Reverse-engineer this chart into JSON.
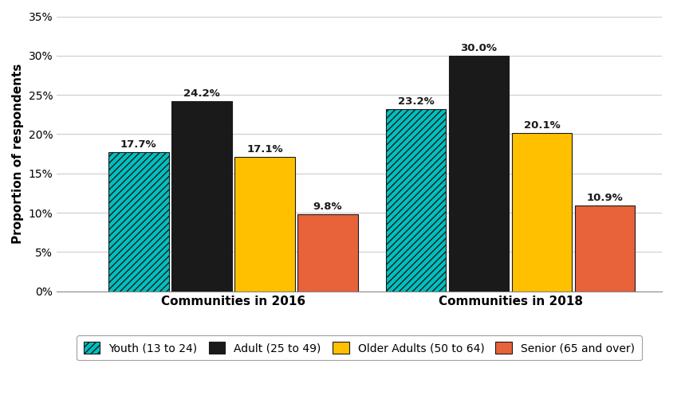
{
  "groups": [
    "Communities in 2016",
    "Communities in 2018"
  ],
  "categories": [
    "Youth (13 to 24)",
    "Adult (25 to 49)",
    "Older Adults (50 to 64)",
    "Senior (65 and over)"
  ],
  "values": {
    "Communities in 2016": [
      17.7,
      24.2,
      17.1,
      9.8
    ],
    "Communities in 2018": [
      23.2,
      30.0,
      20.1,
      10.9
    ]
  },
  "bar_colors": [
    "#00C0C0",
    "#1a1a1a",
    "#FFC000",
    "#E8623A"
  ],
  "hatch_patterns": [
    "////",
    "",
    "",
    ""
  ],
  "ylabel": "Proportion of respondents",
  "ylim": [
    0,
    35
  ],
  "yticks": [
    0,
    5,
    10,
    15,
    20,
    25,
    30,
    35
  ],
  "ytick_labels": [
    "0%",
    "5%",
    "10%",
    "15%",
    "20%",
    "25%",
    "30%",
    "35%"
  ],
  "bar_width": 0.12,
  "group_centers": [
    0.3,
    0.85
  ],
  "xlim": [
    -0.05,
    1.15
  ],
  "label_fontsize": 9.5,
  "axis_fontsize": 11,
  "tick_fontsize": 10,
  "legend_fontsize": 10,
  "background_color": "#ffffff",
  "grid_color": "#cccccc"
}
